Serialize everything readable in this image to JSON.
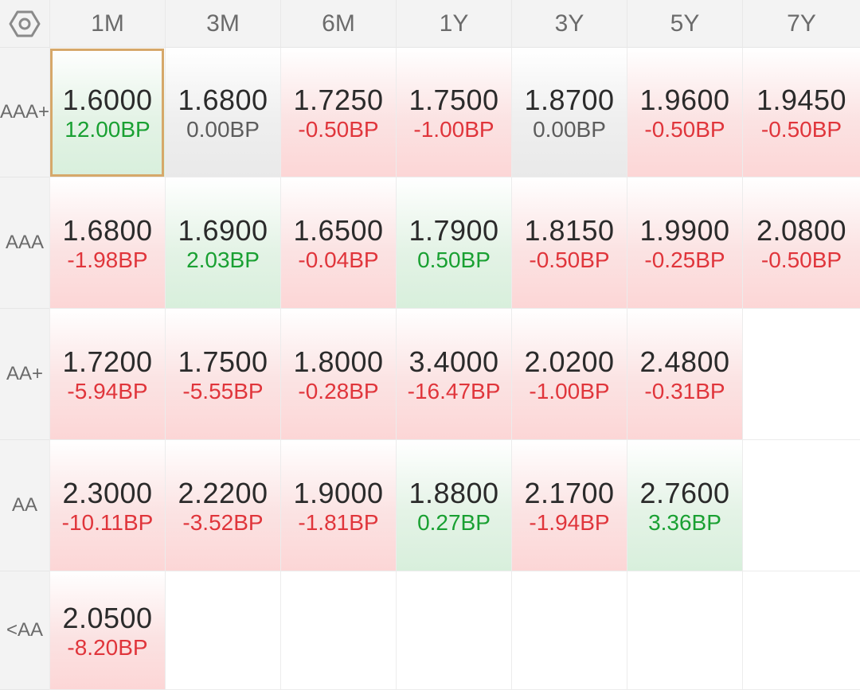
{
  "columns": [
    "1M",
    "3M",
    "6M",
    "1Y",
    "3Y",
    "5Y",
    "7Y"
  ],
  "rows": [
    {
      "label_line1": "AAA",
      "label_line2": "+",
      "cells": [
        {
          "rate": "1.6000",
          "change": "12.00BP",
          "trend": "down",
          "selected": true
        },
        {
          "rate": "1.6800",
          "change": "0.00BP",
          "trend": "flat"
        },
        {
          "rate": "1.7250",
          "change": "-0.50BP",
          "trend": "up"
        },
        {
          "rate": "1.7500",
          "change": "-1.00BP",
          "trend": "up"
        },
        {
          "rate": "1.8700",
          "change": "0.00BP",
          "trend": "flat"
        },
        {
          "rate": "1.9600",
          "change": "-0.50BP",
          "trend": "up"
        },
        {
          "rate": "1.9450",
          "change": "-0.50BP",
          "trend": "up"
        }
      ]
    },
    {
      "label_line1": "AAA",
      "label_line2": "",
      "cells": [
        {
          "rate": "1.6800",
          "change": "-1.98BP",
          "trend": "up"
        },
        {
          "rate": "1.6900",
          "change": "2.03BP",
          "trend": "down"
        },
        {
          "rate": "1.6500",
          "change": "-0.04BP",
          "trend": "up"
        },
        {
          "rate": "1.7900",
          "change": "0.50BP",
          "trend": "down"
        },
        {
          "rate": "1.8150",
          "change": "-0.50BP",
          "trend": "up"
        },
        {
          "rate": "1.9900",
          "change": "-0.25BP",
          "trend": "up"
        },
        {
          "rate": "2.0800",
          "change": "-0.50BP",
          "trend": "up"
        }
      ]
    },
    {
      "label_line1": "AA+",
      "label_line2": "",
      "cells": [
        {
          "rate": "1.7200",
          "change": "-5.94BP",
          "trend": "up"
        },
        {
          "rate": "1.7500",
          "change": "-5.55BP",
          "trend": "up"
        },
        {
          "rate": "1.8000",
          "change": "-0.28BP",
          "trend": "up"
        },
        {
          "rate": "3.4000",
          "change": "-16.47BP",
          "trend": "up"
        },
        {
          "rate": "2.0200",
          "change": "-1.00BP",
          "trend": "up"
        },
        {
          "rate": "2.4800",
          "change": "-0.31BP",
          "trend": "up"
        },
        null
      ]
    },
    {
      "label_line1": "AA",
      "label_line2": "",
      "cells": [
        {
          "rate": "2.3000",
          "change": "-10.11BP",
          "trend": "up"
        },
        {
          "rate": "2.2200",
          "change": "-3.52BP",
          "trend": "up"
        },
        {
          "rate": "1.9000",
          "change": "-1.81BP",
          "trend": "up"
        },
        {
          "rate": "1.8800",
          "change": "0.27BP",
          "trend": "down"
        },
        {
          "rate": "2.1700",
          "change": "-1.94BP",
          "trend": "up"
        },
        {
          "rate": "2.7600",
          "change": "3.36BP",
          "trend": "down"
        },
        null
      ]
    },
    {
      "label_line1": "<AA",
      "label_line2": "",
      "cells": [
        {
          "rate": "2.0500",
          "change": "-8.20BP",
          "trend": "up"
        },
        null,
        null,
        null,
        null,
        null,
        null
      ]
    }
  ],
  "icons": {
    "settings": "hexagon-settings-icon"
  },
  "colors": {
    "negative_change": "#e0353b",
    "positive_change": "#19a032",
    "neutral_change": "#5c5c5c",
    "selection_border": "#d6a86a"
  }
}
